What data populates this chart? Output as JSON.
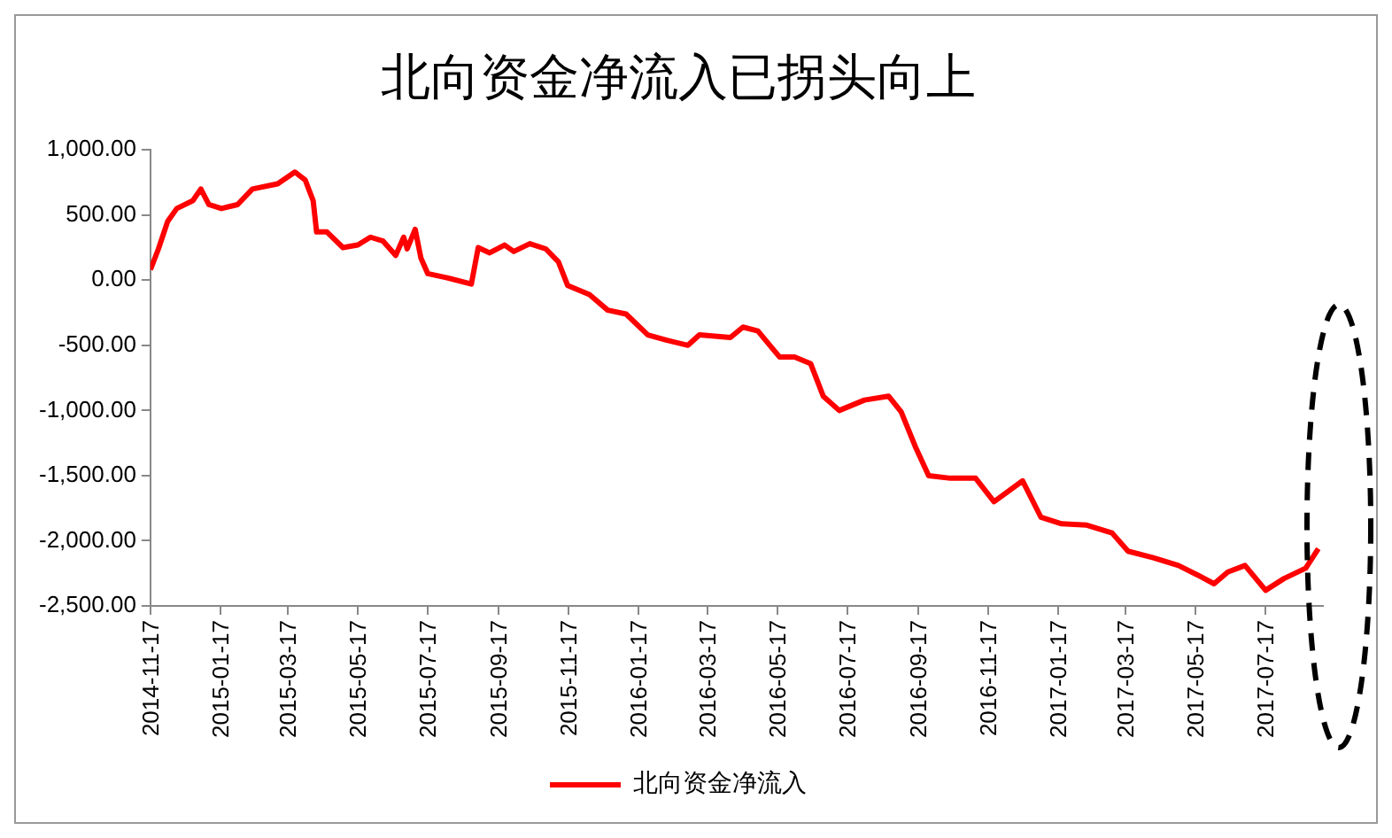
{
  "chart_data": {
    "type": "line",
    "title": "北向资金净流入已拐头向上",
    "x": [
      "2014-11-17",
      "2014-11-24",
      "2014-12-02",
      "2014-12-10",
      "2014-12-24",
      "2014-12-31",
      "2015-01-07",
      "2015-01-18",
      "2015-02-01",
      "2015-02-14",
      "2015-03-08",
      "2015-03-23",
      "2015-04-01",
      "2015-04-08",
      "2015-04-11",
      "2015-04-20",
      "2015-05-04",
      "2015-05-17",
      "2015-05-28",
      "2015-06-08",
      "2015-06-19",
      "2015-06-26",
      "2015-06-29",
      "2015-07-06",
      "2015-07-11",
      "2015-07-17",
      "2015-08-02",
      "2015-08-24",
      "2015-08-30",
      "2015-09-09",
      "2015-09-22",
      "2015-09-30",
      "2015-10-14",
      "2015-10-28",
      "2015-11-08",
      "2015-11-16",
      "2015-12-05",
      "2015-12-21",
      "2016-01-06",
      "2016-01-25",
      "2016-02-10",
      "2016-02-29",
      "2016-03-10",
      "2016-04-06",
      "2016-04-17",
      "2016-04-30",
      "2016-05-19",
      "2016-06-01",
      "2016-06-15",
      "2016-06-26",
      "2016-07-10",
      "2016-08-01",
      "2016-08-22",
      "2016-09-02",
      "2016-09-15",
      "2016-09-26",
      "2016-10-15",
      "2016-11-06",
      "2016-11-22",
      "2016-12-17",
      "2017-01-02",
      "2017-01-20",
      "2017-02-11",
      "2017-03-05",
      "2017-03-19",
      "2017-04-10",
      "2017-05-02",
      "2017-05-18",
      "2017-06-02",
      "2017-06-14",
      "2017-06-29",
      "2017-07-17",
      "2017-08-02",
      "2017-08-21",
      "2017-09-01"
    ],
    "series": [
      {
        "name": "北向资金净流入",
        "color": "#ff0000",
        "values": [
          80,
          240,
          450,
          550,
          610,
          700,
          580,
          550,
          580,
          700,
          740,
          830,
          770,
          610,
          370,
          370,
          250,
          270,
          330,
          300,
          190,
          330,
          240,
          390,
          170,
          50,
          20,
          -30,
          250,
          210,
          270,
          220,
          280,
          240,
          140,
          -40,
          -110,
          -230,
          -260,
          -420,
          -460,
          -500,
          -420,
          -440,
          -360,
          -390,
          -590,
          -590,
          -640,
          -890,
          -1000,
          -920,
          -890,
          -1010,
          -1290,
          -1500,
          -1520,
          -1520,
          -1700,
          -1540,
          -1820,
          -1870,
          -1880,
          -1940,
          -2080,
          -2130,
          -2190,
          -2260,
          -2330,
          -2240,
          -2190,
          -2380,
          -2290,
          -2210,
          -2060
        ]
      }
    ],
    "xlim": [
      "2014-11-17",
      "2017-09-05"
    ],
    "xticks": [
      "2014-11-17",
      "2015-01-17",
      "2015-03-17",
      "2015-05-17",
      "2015-07-17",
      "2015-09-17",
      "2015-11-17",
      "2016-01-17",
      "2016-03-17",
      "2016-05-17",
      "2016-07-17",
      "2016-09-17",
      "2016-11-17",
      "2017-01-17",
      "2017-03-17",
      "2017-05-17",
      "2017-07-17"
    ],
    "ylim": [
      -2500,
      1000
    ],
    "yticks": [
      {
        "value": 1000,
        "label": "1,000.00"
      },
      {
        "value": 500,
        "label": "500.00"
      },
      {
        "value": 0,
        "label": "0.00"
      },
      {
        "value": -500,
        "label": "-500.00"
      },
      {
        "value": -1000,
        "label": "-1,000.00"
      },
      {
        "value": -1500,
        "label": "-1,500.00"
      },
      {
        "value": -2000,
        "label": "-2,000.00"
      },
      {
        "value": -2500,
        "label": "-2,500.00"
      }
    ],
    "grid": false,
    "legend": "bottom",
    "marker": "none",
    "line_style": "solid"
  }
}
